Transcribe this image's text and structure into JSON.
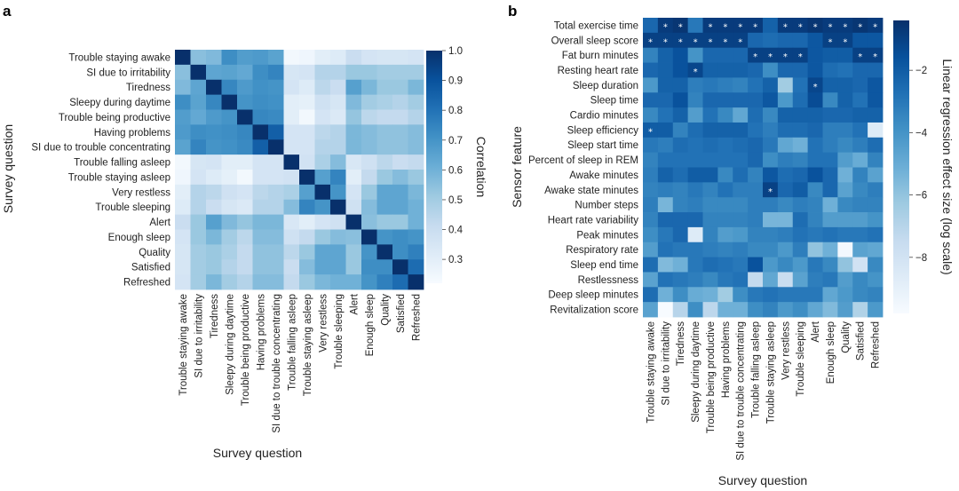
{
  "chart_data": [
    {
      "type": "heatmap",
      "panel": "a",
      "xlabel": "Survey question",
      "ylabel": "Survey question",
      "colorbar": {
        "label": "Correlation",
        "range": [
          0.22,
          1.0
        ],
        "ticks": [
          "1.0",
          "0.9",
          "0.8",
          "0.7",
          "0.6",
          "0.5",
          "0.4",
          "0.3"
        ],
        "tick_values": [
          1.0,
          0.9,
          0.8,
          0.7,
          0.6,
          0.5,
          0.4,
          0.3
        ],
        "colormap": "Blues"
      },
      "rows": [
        "Trouble staying awake",
        "SI due to irritability",
        "Tiredness",
        "Sleepy during daytime",
        "Trouble being productive",
        "Having problems",
        "SI due to trouble concentrating",
        "Trouble falling asleep",
        "Trouble staying asleep",
        "Very restless",
        "Trouble sleeping",
        "Alert",
        "Enough sleep",
        "Quality",
        "Satisfied",
        "Refreshed"
      ],
      "columns": [
        "Trouble staying awake",
        "SI due to irritability",
        "Tiredness",
        "Sleepy during daytime",
        "Trouble being productive",
        "Having problems",
        "SI due to trouble concentrating",
        "Trouble falling asleep",
        "Trouble staying asleep",
        "Very restless",
        "Trouble sleeping",
        "Alert",
        "Enough sleep",
        "Quality",
        "Satisfied",
        "Refreshed"
      ],
      "values": [
        [
          1.0,
          0.55,
          0.57,
          0.72,
          0.67,
          0.68,
          0.65,
          0.24,
          0.25,
          0.3,
          0.32,
          0.4,
          0.36,
          0.35,
          0.35,
          0.36
        ],
        [
          0.55,
          1.0,
          0.64,
          0.65,
          0.63,
          0.72,
          0.75,
          0.35,
          0.36,
          0.46,
          0.46,
          0.52,
          0.52,
          0.5,
          0.5,
          0.5
        ],
        [
          0.57,
          0.64,
          1.0,
          0.74,
          0.68,
          0.71,
          0.7,
          0.36,
          0.32,
          0.44,
          0.4,
          0.66,
          0.58,
          0.52,
          0.52,
          0.58
        ],
        [
          0.72,
          0.65,
          0.74,
          1.0,
          0.7,
          0.72,
          0.71,
          0.3,
          0.29,
          0.38,
          0.35,
          0.57,
          0.5,
          0.48,
          0.46,
          0.5
        ],
        [
          0.67,
          0.63,
          0.68,
          0.7,
          1.0,
          0.74,
          0.73,
          0.3,
          0.24,
          0.36,
          0.33,
          0.53,
          0.44,
          0.42,
          0.42,
          0.46
        ],
        [
          0.68,
          0.72,
          0.71,
          0.72,
          0.74,
          1.0,
          0.86,
          0.36,
          0.36,
          0.44,
          0.46,
          0.58,
          0.56,
          0.54,
          0.54,
          0.56
        ],
        [
          0.65,
          0.75,
          0.7,
          0.71,
          0.73,
          0.86,
          1.0,
          0.36,
          0.36,
          0.46,
          0.46,
          0.58,
          0.56,
          0.54,
          0.54,
          0.56
        ],
        [
          0.24,
          0.35,
          0.36,
          0.3,
          0.3,
          0.36,
          0.36,
          1.0,
          0.37,
          0.48,
          0.56,
          0.34,
          0.38,
          0.44,
          0.4,
          0.42
        ],
        [
          0.25,
          0.36,
          0.32,
          0.29,
          0.24,
          0.36,
          0.36,
          0.37,
          1.0,
          0.66,
          0.75,
          0.3,
          0.42,
          0.52,
          0.56,
          0.52
        ],
        [
          0.3,
          0.46,
          0.44,
          0.38,
          0.36,
          0.44,
          0.46,
          0.48,
          0.66,
          1.0,
          0.7,
          0.36,
          0.52,
          0.64,
          0.64,
          0.58
        ],
        [
          0.32,
          0.46,
          0.4,
          0.35,
          0.33,
          0.46,
          0.46,
          0.56,
          0.75,
          0.7,
          1.0,
          0.38,
          0.56,
          0.64,
          0.64,
          0.6
        ],
        [
          0.4,
          0.52,
          0.66,
          0.57,
          0.53,
          0.58,
          0.58,
          0.34,
          0.3,
          0.36,
          0.38,
          1.0,
          0.55,
          0.52,
          0.52,
          0.6
        ],
        [
          0.36,
          0.52,
          0.58,
          0.5,
          0.44,
          0.56,
          0.56,
          0.38,
          0.42,
          0.52,
          0.56,
          0.55,
          1.0,
          0.7,
          0.72,
          0.7
        ],
        [
          0.35,
          0.5,
          0.52,
          0.48,
          0.42,
          0.54,
          0.54,
          0.44,
          0.52,
          0.64,
          0.64,
          0.52,
          0.7,
          1.0,
          0.72,
          0.76
        ],
        [
          0.35,
          0.5,
          0.52,
          0.46,
          0.42,
          0.54,
          0.54,
          0.4,
          0.56,
          0.64,
          0.64,
          0.52,
          0.72,
          0.72,
          1.0,
          0.82
        ],
        [
          0.36,
          0.5,
          0.58,
          0.5,
          0.46,
          0.56,
          0.56,
          0.42,
          0.52,
          0.58,
          0.6,
          0.6,
          0.7,
          0.76,
          0.82,
          1.0
        ]
      ]
    },
    {
      "type": "heatmap",
      "panel": "b",
      "xlabel": "Survey question",
      "ylabel": "Sensor feature",
      "colorbar": {
        "label": "Linear regression effect size (log scale)",
        "range": [
          -9.8,
          -0.4
        ],
        "ticks": [
          "−2",
          "−4",
          "−6",
          "−8"
        ],
        "tick_values": [
          -2,
          -4,
          -6,
          -8
        ],
        "colormap": "Blues"
      },
      "annotation": "* marks significant associations",
      "rows": [
        "Total exercise time",
        "Overall sleep score",
        "Fat burn minutes",
        "Resting heart rate",
        "Sleep duration",
        "Sleep time",
        "Cardio minutes",
        "Sleep efficiency",
        "Sleep start time",
        "Percent of sleep in REM",
        "Awake minutes",
        "Awake state minutes",
        "Number steps",
        "Heart rate variability",
        "Peak minutes",
        "Respiratory rate",
        "Sleep end time",
        "Restlessness",
        "Deep sleep minutes",
        "Revitalization score"
      ],
      "columns": [
        "Trouble staying awake",
        "SI due to irritability",
        "Tiredness",
        "Sleepy during daytime",
        "Trouble being productive",
        "Having problems",
        "SI due to trouble concentrating",
        "Trouble falling asleep",
        "Trouble staying asleep",
        "Very restless",
        "Trouble sleeping",
        "Alert",
        "Enough sleep",
        "Quality",
        "Satisfied",
        "Refreshed"
      ],
      "values": [
        [
          -2.4,
          -0.8,
          -0.6,
          -3.0,
          -0.8,
          -0.8,
          -0.8,
          -0.8,
          -2.2,
          -0.8,
          -0.8,
          -0.6,
          -0.8,
          -0.8,
          -0.6,
          -0.8
        ],
        [
          -1.0,
          -1.0,
          -1.0,
          -1.0,
          -1.0,
          -1.0,
          -1.0,
          -2.4,
          -2.6,
          -2.4,
          -2.4,
          -1.8,
          -1.0,
          -1.0,
          -1.8,
          -1.8
        ],
        [
          -3.4,
          -2.2,
          -1.6,
          -4.0,
          -2.4,
          -2.4,
          -2.4,
          -1.0,
          -1.0,
          -1.0,
          -1.0,
          -1.8,
          -2.0,
          -2.0,
          -1.0,
          -1.0
        ],
        [
          -2.4,
          -2.2,
          -1.6,
          -1.2,
          -2.2,
          -2.2,
          -2.2,
          -2.4,
          -3.8,
          -2.4,
          -2.4,
          -1.8,
          -2.6,
          -2.8,
          -2.4,
          -2.4
        ],
        [
          -4.2,
          -2.2,
          -2.2,
          -3.2,
          -3.0,
          -3.2,
          -3.4,
          -2.8,
          -2.2,
          -6.4,
          -2.8,
          -1.2,
          -2.2,
          -2.2,
          -2.4,
          -1.8
        ],
        [
          -2.4,
          -2.4,
          -1.6,
          -3.4,
          -2.4,
          -2.4,
          -2.4,
          -2.4,
          -1.8,
          -4.2,
          -2.6,
          -1.4,
          -3.6,
          -2.2,
          -2.8,
          -1.8
        ],
        [
          -3.6,
          -2.8,
          -2.2,
          -4.4,
          -2.8,
          -3.6,
          -4.8,
          -2.6,
          -3.6,
          -2.2,
          -2.2,
          -2.2,
          -2.4,
          -2.4,
          -2.2,
          -2.2
        ],
        [
          -2.0,
          -2.0,
          -3.4,
          -2.6,
          -2.2,
          -2.2,
          -2.2,
          -2.8,
          -3.2,
          -2.6,
          -2.6,
          -2.4,
          -3.2,
          -3.2,
          -2.8,
          -8.6
        ],
        [
          -3.0,
          -3.2,
          -2.6,
          -2.8,
          -2.6,
          -2.8,
          -2.6,
          -2.4,
          -3.0,
          -4.8,
          -5.2,
          -2.8,
          -3.2,
          -3.6,
          -3.2,
          -2.6
        ],
        [
          -3.4,
          -2.8,
          -2.8,
          -2.8,
          -2.8,
          -2.8,
          -2.8,
          -2.4,
          -3.8,
          -3.2,
          -3.4,
          -2.8,
          -2.8,
          -4.4,
          -5.0,
          -3.4
        ],
        [
          -3.2,
          -2.2,
          -2.6,
          -2.0,
          -2.0,
          -3.6,
          -2.6,
          -3.4,
          -1.8,
          -2.6,
          -2.4,
          -1.6,
          -2.4,
          -5.2,
          -3.4,
          -4.6
        ],
        [
          -3.4,
          -3.2,
          -3.4,
          -3.0,
          -3.4,
          -2.8,
          -3.2,
          -3.2,
          -1.0,
          -2.4,
          -2.0,
          -3.6,
          -2.4,
          -4.6,
          -3.6,
          -3.2
        ],
        [
          -3.2,
          -5.4,
          -3.4,
          -3.2,
          -3.6,
          -3.6,
          -3.6,
          -3.2,
          -3.2,
          -3.6,
          -3.2,
          -3.4,
          -5.2,
          -3.6,
          -3.4,
          -3.4
        ],
        [
          -3.4,
          -2.4,
          -2.4,
          -2.4,
          -3.4,
          -3.4,
          -3.4,
          -3.2,
          -5.4,
          -5.4,
          -2.6,
          -3.4,
          -4.4,
          -4.4,
          -4.4,
          -4.0
        ],
        [
          -3.8,
          -3.0,
          -2.4,
          -8.6,
          -3.4,
          -4.4,
          -4.2,
          -3.4,
          -3.4,
          -3.2,
          -2.8,
          -3.0,
          -2.8,
          -3.0,
          -3.0,
          -2.8
        ],
        [
          -4.4,
          -2.8,
          -3.0,
          -3.0,
          -3.2,
          -3.4,
          -3.2,
          -3.6,
          -3.6,
          -4.2,
          -3.2,
          -6.0,
          -5.2,
          -9.6,
          -4.6,
          -4.8
        ],
        [
          -2.6,
          -5.6,
          -5.2,
          -3.0,
          -2.6,
          -2.8,
          -3.0,
          -1.6,
          -4.2,
          -3.6,
          -4.2,
          -3.0,
          -3.6,
          -6.0,
          -8.0,
          -3.6
        ],
        [
          -4.6,
          -2.8,
          -3.0,
          -3.2,
          -3.6,
          -3.0,
          -2.8,
          -7.4,
          -4.8,
          -7.6,
          -4.6,
          -3.2,
          -3.0,
          -4.4,
          -3.6,
          -4.0
        ],
        [
          -2.6,
          -5.2,
          -3.8,
          -5.0,
          -5.2,
          -6.4,
          -3.8,
          -3.0,
          -2.8,
          -3.0,
          -3.0,
          -3.0,
          -4.8,
          -4.2,
          -3.6,
          -3.4
        ],
        [
          -4.6,
          -9.8,
          -7.0,
          -3.8,
          -7.2,
          -5.2,
          -5.2,
          -3.8,
          -3.4,
          -4.2,
          -3.8,
          -4.8,
          -5.6,
          -4.4,
          -6.8,
          -4.2
        ]
      ],
      "significant": [
        [
          0,
          1
        ],
        [
          0,
          2
        ],
        [
          0,
          4
        ],
        [
          0,
          5
        ],
        [
          0,
          6
        ],
        [
          0,
          7
        ],
        [
          0,
          9
        ],
        [
          0,
          10
        ],
        [
          0,
          11
        ],
        [
          0,
          12
        ],
        [
          0,
          13
        ],
        [
          0,
          14
        ],
        [
          0,
          15
        ],
        [
          1,
          0
        ],
        [
          1,
          1
        ],
        [
          1,
          2
        ],
        [
          1,
          3
        ],
        [
          1,
          4
        ],
        [
          1,
          5
        ],
        [
          1,
          6
        ],
        [
          1,
          12
        ],
        [
          1,
          13
        ],
        [
          2,
          7
        ],
        [
          2,
          8
        ],
        [
          2,
          9
        ],
        [
          2,
          10
        ],
        [
          2,
          14
        ],
        [
          2,
          15
        ],
        [
          3,
          3
        ],
        [
          4,
          11
        ],
        [
          7,
          0
        ],
        [
          11,
          8
        ]
      ]
    }
  ],
  "panels": {
    "a": {
      "letter": "a",
      "xlabel": "Survey question",
      "ylabel": "Survey question",
      "colorbar_label": "Correlation"
    },
    "b": {
      "letter": "b",
      "xlabel": "Survey question",
      "ylabel": "Sensor feature",
      "colorbar_label": "Linear regression effect size (log scale)"
    }
  }
}
